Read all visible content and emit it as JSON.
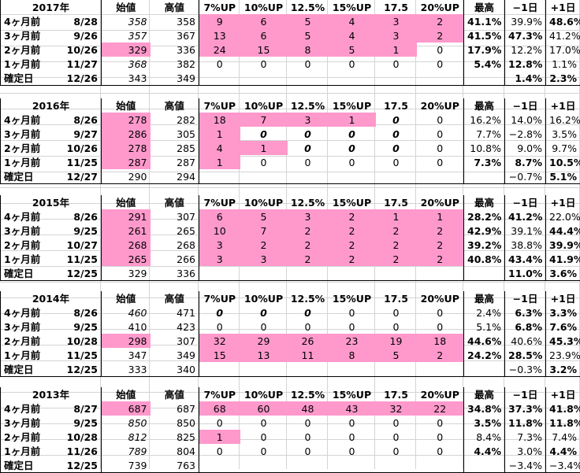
{
  "columns": [
    "始値",
    "高値",
    "7%UP",
    "10%UP",
    "12.5%",
    "15%UP",
    "17.5",
    "20%UP",
    "最高",
    "−1日",
    "+1日"
  ],
  "blocks": [
    {
      "year": "2017年",
      "rows": [
        {
          "label": "4ヶ月前",
          "date": "8/28",
          "v": [
            "358",
            "358",
            "9",
            "6",
            "5",
            "4",
            "3",
            "2",
            "41.1%",
            "39.9%",
            "48.6%"
          ]
        },
        {
          "label": "3ヶ月前",
          "date": "9/26",
          "v": [
            "357",
            "367",
            "13",
            "6",
            "5",
            "4",
            "3",
            "2",
            "41.5%",
            "47.3%",
            "41.2%"
          ]
        },
        {
          "label": "2ヶ月前",
          "date": "10/26",
          "v": [
            "329",
            "336",
            "24",
            "15",
            "8",
            "5",
            "1",
            "0",
            "17.9%",
            "12.2%",
            "17.0%"
          ]
        },
        {
          "label": "1ヶ月前",
          "date": "11/27",
          "v": [
            "368",
            "382",
            "0",
            "0",
            "0",
            "0",
            "0",
            "0",
            "5.4%",
            "12.8%",
            "1.1%"
          ]
        }
      ],
      "confirm": {
        "label": "確定日",
        "date": "12/26",
        "v": [
          "343",
          "349",
          "1.4%",
          "2.3%"
        ]
      }
    },
    {
      "year": "2016年",
      "rows": [
        {
          "label": "4ヶ月前",
          "date": "8/26",
          "v": [
            "278",
            "282",
            "18",
            "7",
            "3",
            "1",
            "0",
            "0",
            "16.2%",
            "14.0%",
            "16.2%"
          ]
        },
        {
          "label": "3ヶ月前",
          "date": "9/27",
          "v": [
            "286",
            "305",
            "1",
            "0",
            "0",
            "0",
            "0",
            "0",
            "7.7%",
            "−2.8%",
            "3.5%"
          ]
        },
        {
          "label": "2ヶ月前",
          "date": "10/26",
          "v": [
            "278",
            "285",
            "4",
            "1",
            "0",
            "0",
            "0",
            "0",
            "10.8%",
            "9.0%",
            "9.7%"
          ]
        },
        {
          "label": "1ヶ月前",
          "date": "11/25",
          "v": [
            "287",
            "287",
            "1",
            "0",
            "0",
            "0",
            "0",
            "0",
            "7.3%",
            "8.7%",
            "10.5%"
          ]
        }
      ],
      "confirm": {
        "label": "確定日",
        "date": "12/27",
        "v": [
          "290",
          "294",
          "−0.7%",
          "5.1%"
        ]
      }
    },
    {
      "year": "2015年",
      "rows": [
        {
          "label": "4ヶ月前",
          "date": "8/26",
          "v": [
            "291",
            "307",
            "6",
            "5",
            "3",
            "2",
            "1",
            "1",
            "28.2%",
            "41.2%",
            "22.0%"
          ]
        },
        {
          "label": "3ヶ月前",
          "date": "9/25",
          "v": [
            "261",
            "265",
            "10",
            "7",
            "2",
            "2",
            "2",
            "2",
            "42.9%",
            "39.1%",
            "44.4%"
          ]
        },
        {
          "label": "2ヶ月前",
          "date": "10/27",
          "v": [
            "268",
            "268",
            "3",
            "2",
            "2",
            "2",
            "2",
            "2",
            "39.2%",
            "38.8%",
            "39.9%"
          ]
        },
        {
          "label": "1ヶ月前",
          "date": "11/25",
          "v": [
            "265",
            "266",
            "3",
            "3",
            "2",
            "2",
            "2",
            "2",
            "40.8%",
            "43.4%",
            "41.9%"
          ]
        }
      ],
      "confirm": {
        "label": "確定日",
        "date": "12/25",
        "v": [
          "329",
          "336",
          "11.0%",
          "3.6%"
        ]
      }
    },
    {
      "year": "2014年",
      "rows": [
        {
          "label": "4ヶ月前",
          "date": "8/26",
          "v": [
            "460",
            "471",
            "0",
            "0",
            "0",
            "0",
            "0",
            "0",
            "2.4%",
            "6.3%",
            "3.3%"
          ]
        },
        {
          "label": "3ヶ月前",
          "date": "9/25",
          "v": [
            "410",
            "423",
            "0",
            "0",
            "0",
            "0",
            "0",
            "0",
            "5.1%",
            "6.8%",
            "7.6%"
          ]
        },
        {
          "label": "2ヶ月前",
          "date": "10/28",
          "v": [
            "298",
            "307",
            "32",
            "29",
            "26",
            "23",
            "19",
            "18",
            "44.6%",
            "40.6%",
            "45.3%"
          ]
        },
        {
          "label": "1ヶ月前",
          "date": "11/25",
          "v": [
            "347",
            "349",
            "15",
            "13",
            "11",
            "8",
            "5",
            "2",
            "24.2%",
            "28.5%",
            "23.9%"
          ]
        }
      ],
      "confirm": {
        "label": "確定日",
        "date": "12/25",
        "v": [
          "333",
          "340",
          "−0.3%",
          "3.2%"
        ]
      }
    },
    {
      "year": "2013年",
      "rows": [
        {
          "label": "4ヶ月前",
          "date": "8/27",
          "v": [
            "687",
            "687",
            "68",
            "60",
            "48",
            "43",
            "32",
            "22",
            "34.8%",
            "37.3%",
            "41.8%"
          ]
        },
        {
          "label": "3ヶ月前",
          "date": "9/25",
          "v": [
            "850",
            "850",
            "0",
            "0",
            "0",
            "0",
            "0",
            "0",
            "3.5%",
            "11.8%",
            "11.8%"
          ]
        },
        {
          "label": "2ヶ月前",
          "date": "10/28",
          "v": [
            "812",
            "825",
            "1",
            "0",
            "0",
            "0",
            "0",
            "0",
            "8.4%",
            "7.3%",
            "7.4%"
          ]
        },
        {
          "label": "1ヶ月前",
          "date": "11/26",
          "v": [
            "789",
            "804",
            "0",
            "0",
            "0",
            "0",
            "0",
            "0",
            "4.4%",
            "3.0%",
            "4.4%"
          ]
        }
      ],
      "confirm": {
        "label": "確定日",
        "date": "12/25",
        "v": [
          "739",
          "763",
          "−3.4%",
          "−3.4%"
        ]
      }
    }
  ]
}
